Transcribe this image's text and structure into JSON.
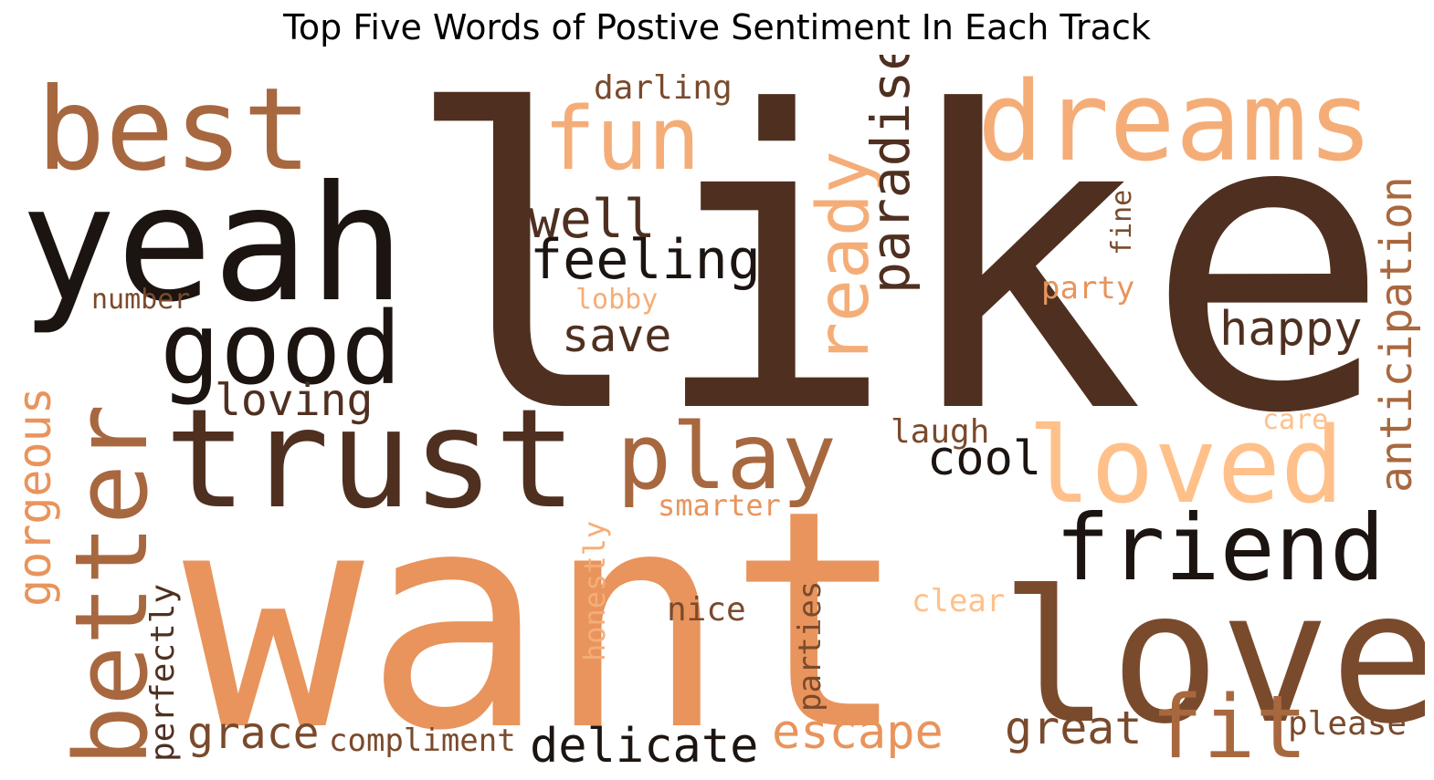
{
  "title": "Top Five Words of Postive Sentiment In Each Track",
  "palette": {
    "darkest": "#1c1410",
    "dark_brown": "#4f3020",
    "brown": "#7a4a2c",
    "tan": "#a8683f",
    "orange": "#e8945c",
    "light_orange": "#f5ad78",
    "peach": "#ffc08a"
  },
  "words": [
    {
      "text": "like",
      "color": "dark_brown",
      "orientation": "horizontal"
    },
    {
      "text": "want",
      "color": "orange",
      "orientation": "horizontal"
    },
    {
      "text": "yeah",
      "color": "darkest",
      "orientation": "horizontal"
    },
    {
      "text": "trust",
      "color": "dark_brown",
      "orientation": "horizontal"
    },
    {
      "text": "love",
      "color": "brown",
      "orientation": "horizontal"
    },
    {
      "text": "best",
      "color": "tan",
      "orientation": "horizontal"
    },
    {
      "text": "dreams",
      "color": "light_orange",
      "orientation": "horizontal"
    },
    {
      "text": "loved",
      "color": "peach",
      "orientation": "horizontal"
    },
    {
      "text": "good",
      "color": "darkest",
      "orientation": "horizontal"
    },
    {
      "text": "better",
      "color": "tan",
      "orientation": "vertical"
    },
    {
      "text": "friend",
      "color": "darkest",
      "orientation": "horizontal"
    },
    {
      "text": "play",
      "color": "tan",
      "orientation": "horizontal"
    },
    {
      "text": "fun",
      "color": "light_orange",
      "orientation": "horizontal"
    },
    {
      "text": "fit",
      "color": "tan",
      "orientation": "horizontal"
    },
    {
      "text": "ready",
      "color": "light_orange",
      "orientation": "vertical"
    },
    {
      "text": "feeling",
      "color": "darkest",
      "orientation": "horizontal"
    },
    {
      "text": "well",
      "color": "dark_brown",
      "orientation": "horizontal"
    },
    {
      "text": "paradise",
      "color": "dark_brown",
      "orientation": "vertical"
    },
    {
      "text": "happy",
      "color": "dark_brown",
      "orientation": "horizontal"
    },
    {
      "text": "anticipation",
      "color": "tan",
      "orientation": "vertical"
    },
    {
      "text": "gorgeous",
      "color": "orange",
      "orientation": "vertical"
    },
    {
      "text": "loving",
      "color": "dark_brown",
      "orientation": "horizontal"
    },
    {
      "text": "save",
      "color": "dark_brown",
      "orientation": "horizontal"
    },
    {
      "text": "cool",
      "color": "darkest",
      "orientation": "horizontal"
    },
    {
      "text": "escape",
      "color": "orange",
      "orientation": "horizontal"
    },
    {
      "text": "delicate",
      "color": "darkest",
      "orientation": "horizontal"
    },
    {
      "text": "great",
      "color": "brown",
      "orientation": "horizontal"
    },
    {
      "text": "grace",
      "color": "brown",
      "orientation": "horizontal"
    },
    {
      "text": "darling",
      "color": "brown",
      "orientation": "horizontal"
    },
    {
      "text": "number",
      "color": "brown",
      "orientation": "horizontal"
    },
    {
      "text": "laugh",
      "color": "brown",
      "orientation": "horizontal"
    },
    {
      "text": "smarter",
      "color": "orange",
      "orientation": "horizontal"
    },
    {
      "text": "nice",
      "color": "brown",
      "orientation": "horizontal"
    },
    {
      "text": "clear",
      "color": "peach",
      "orientation": "horizontal"
    },
    {
      "text": "party",
      "color": "orange",
      "orientation": "horizontal"
    },
    {
      "text": "care",
      "color": "peach",
      "orientation": "horizontal"
    },
    {
      "text": "lobby",
      "color": "light_orange",
      "orientation": "horizontal"
    },
    {
      "text": "fine",
      "color": "brown",
      "orientation": "vertical"
    },
    {
      "text": "honestly",
      "color": "light_orange",
      "orientation": "vertical"
    },
    {
      "text": "parties",
      "color": "brown",
      "orientation": "vertical"
    },
    {
      "text": "perfectly",
      "color": "dark_brown",
      "orientation": "vertical"
    },
    {
      "text": "compliment",
      "color": "brown",
      "orientation": "horizontal"
    },
    {
      "text": "please",
      "color": "brown",
      "orientation": "horizontal"
    }
  ]
}
